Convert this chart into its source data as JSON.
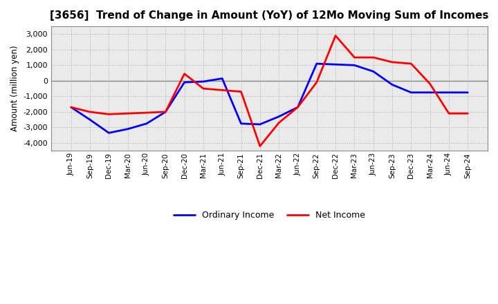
{
  "title": "[3656]  Trend of Change in Amount (YoY) of 12Mo Moving Sum of Incomes",
  "ylabel": "Amount (million yen)",
  "ylim": [
    -4500,
    3500
  ],
  "yticks": [
    -4000,
    -3000,
    -2000,
    -1000,
    0,
    1000,
    2000,
    3000
  ],
  "line_color_ordinary": "#0000FF",
  "line_color_net": "#FF0000",
  "legend_ordinary": "Ordinary Income",
  "legend_net": "Net Income",
  "x_labels": [
    "Jun-19",
    "Sep-19",
    "Dec-19",
    "Mar-20",
    "Jun-20",
    "Sep-20",
    "Dec-20",
    "Mar-21",
    "Jun-21",
    "Sep-21",
    "Dec-21",
    "Mar-22",
    "Jun-22",
    "Sep-22",
    "Dec-22",
    "Mar-23",
    "Jun-23",
    "Sep-23",
    "Dec-23",
    "Mar-24",
    "Jun-24",
    "Sep-24"
  ],
  "ordinary_income": [
    -1700,
    -2500,
    -3350,
    -3100,
    -2750,
    -2000,
    -100,
    -50,
    150,
    -2750,
    -2800,
    -2300,
    -1700,
    1100,
    1050,
    1000,
    600,
    -250,
    -750,
    -750,
    -750,
    -750
  ],
  "net_income": [
    -1700,
    -2000,
    -2150,
    -2100,
    -2050,
    -2000,
    450,
    -500,
    -600,
    -700,
    -4200,
    -2700,
    -1700,
    -100,
    2900,
    1500,
    1500,
    1200,
    1100,
    -200,
    -2100,
    -2100
  ],
  "line_width": 2.0,
  "bg_color": "#FFFFFF",
  "plot_bg_color": "#EAEAEA",
  "grid_color": "#AAAAAA",
  "grid_color_x": "#AAAAAA",
  "zero_line_color": "#888888",
  "title_fontsize": 11,
  "ylabel_fontsize": 8.5,
  "tick_fontsize": 8,
  "xtick_fontsize": 7.5,
  "legend_fontsize": 9
}
